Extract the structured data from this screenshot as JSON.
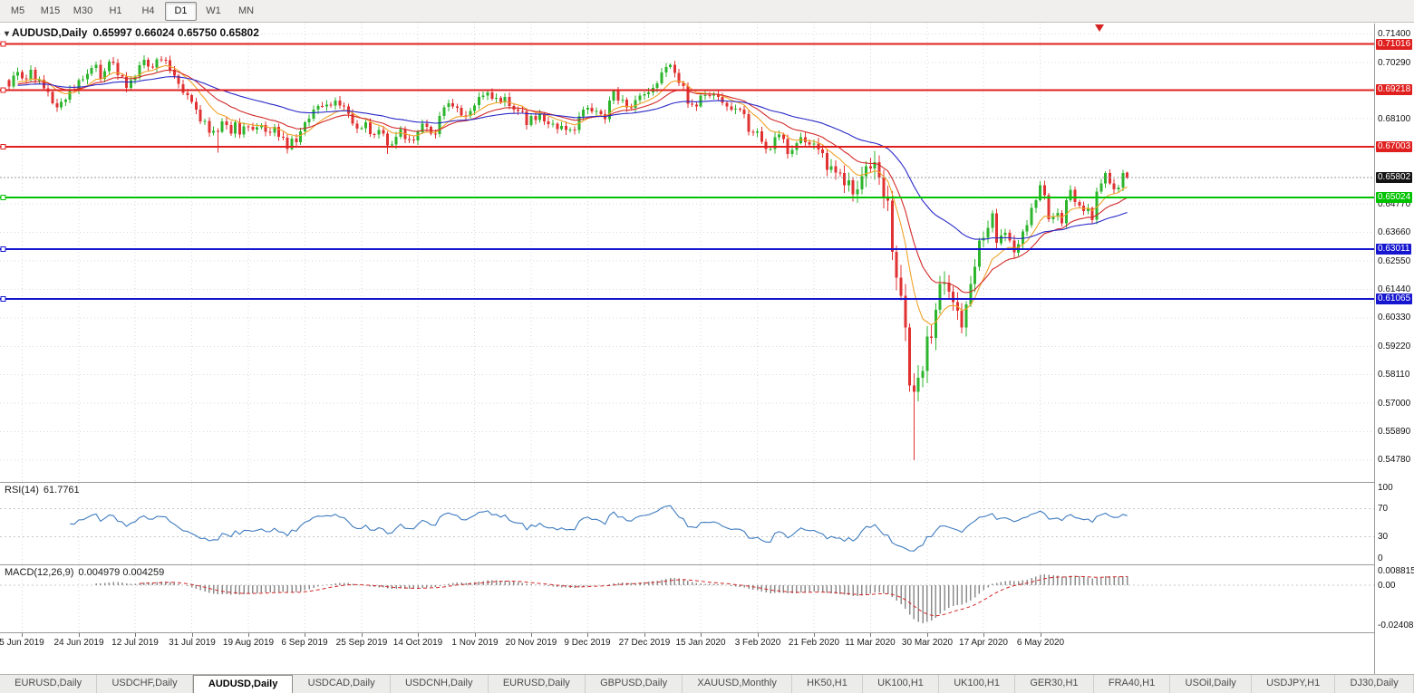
{
  "toolbar": {
    "timeframes": [
      "M5",
      "M15",
      "M30",
      "H1",
      "H4",
      "D1",
      "W1",
      "MN"
    ],
    "selected": "D1"
  },
  "icons": {
    "dropdown": "▾",
    "shift_marker": "▼"
  },
  "colors": {
    "up": "#2db52d",
    "down": "#e03232",
    "wick_up": "#1e8f1e",
    "wick_down": "#b52222",
    "grid": "#dadada",
    "level": "#c8c8c8",
    "hline_red": "#e01f1f",
    "hline_green": "#00c300",
    "hline_blue": "#1616cf",
    "bid_line": "#9a9a9a",
    "bid_badge_bg": "#141414"
  },
  "chart_data": {
    "type": "candlestick",
    "symbol": "AUDUSD",
    "timeframe": "Daily",
    "title": {
      "symbol": "AUDUSD,Daily",
      "values": "0.65997 0.66024 0.65750 0.65802"
    },
    "current": {
      "open": 0.65997,
      "high": 0.66024,
      "low": 0.6575,
      "close": 0.65802
    },
    "price_axis": {
      "max": 0.7181,
      "min": 0.5393,
      "step": 0.0111,
      "labels": [
        "0.71400",
        "0.70290",
        "0.68100",
        "0.64770",
        "0.63660",
        "0.62550",
        "0.61440",
        "0.60330",
        "0.59220",
        "0.58110",
        "0.57000",
        "0.55890",
        "0.54780"
      ]
    },
    "x_axis": {
      "labels": [
        "5 Jun 2019",
        "24 Jun 2019",
        "12 Jul 2019",
        "31 Jul 2019",
        "19 Aug 2019",
        "6 Sep 2019",
        "25 Sep 2019",
        "14 Oct 2019",
        "1 Nov 2019",
        "20 Nov 2019",
        "9 Dec 2019",
        "27 Dec 2019",
        "15 Jan 2020",
        "3 Feb 2020",
        "21 Feb 2020",
        "11 Mar 2020",
        "30 Mar 2020",
        "17 Apr 2020",
        "6 May 2020"
      ],
      "tick_start_index": 3,
      "tick_step": 13
    },
    "closes": [
      0.6936,
      0.6978,
      0.6992,
      0.6968,
      0.6964,
      0.7,
      0.696,
      0.6962,
      0.6928,
      0.6914,
      0.687,
      0.6854,
      0.6875,
      0.6884,
      0.6925,
      0.6922,
      0.696,
      0.6963,
      0.6985,
      0.7008,
      0.7021,
      0.6965,
      0.6995,
      0.7032,
      0.7028,
      0.698,
      0.6975,
      0.693,
      0.696,
      0.6975,
      0.7018,
      0.704,
      0.7013,
      0.701,
      0.7042,
      0.704,
      0.7038,
      0.7,
      0.6978,
      0.6945,
      0.691,
      0.6902,
      0.6875,
      0.6845,
      0.68,
      0.6802,
      0.6755,
      0.6762,
      0.6758,
      0.68,
      0.6785,
      0.6752,
      0.6795,
      0.6748,
      0.678,
      0.6778,
      0.6768,
      0.6776,
      0.6785,
      0.6758,
      0.6755,
      0.6778,
      0.674,
      0.6735,
      0.6692,
      0.6733,
      0.6718,
      0.676,
      0.6795,
      0.681,
      0.6845,
      0.686,
      0.6858,
      0.6865,
      0.6862,
      0.688,
      0.6862,
      0.6858,
      0.683,
      0.679,
      0.6772,
      0.6773,
      0.6795,
      0.675,
      0.6748,
      0.6765,
      0.6752,
      0.6705,
      0.671,
      0.674,
      0.677,
      0.673,
      0.6728,
      0.6725,
      0.6758,
      0.679,
      0.6778,
      0.6752,
      0.675,
      0.682,
      0.6855,
      0.687,
      0.6858,
      0.6852,
      0.6822,
      0.682,
      0.684,
      0.6862,
      0.6895,
      0.69,
      0.6912,
      0.6888,
      0.6892,
      0.6875,
      0.6895,
      0.686,
      0.6845,
      0.684,
      0.6838,
      0.6785,
      0.682,
      0.6805,
      0.683,
      0.68,
      0.6788,
      0.679,
      0.677,
      0.6782,
      0.6765,
      0.6768,
      0.6765,
      0.6818,
      0.6845,
      0.6853,
      0.6838,
      0.684,
      0.6828,
      0.6808,
      0.688,
      0.6918,
      0.688,
      0.6885,
      0.6855,
      0.6852,
      0.6882,
      0.69,
      0.6905,
      0.6912,
      0.693,
      0.6948,
      0.699,
      0.7012,
      0.7021,
      0.6988,
      0.695,
      0.6938,
      0.6868,
      0.6865,
      0.6858,
      0.69,
      0.6902,
      0.69,
      0.6905,
      0.6895,
      0.6872,
      0.6858,
      0.6845,
      0.6848,
      0.6845,
      0.6828,
      0.6758,
      0.6755,
      0.676,
      0.672,
      0.6692,
      0.6692,
      0.6738,
      0.6748,
      0.673,
      0.6672,
      0.6688,
      0.6715,
      0.6738,
      0.6718,
      0.671,
      0.6712,
      0.669,
      0.6675,
      0.661,
      0.6625,
      0.66,
      0.6598,
      0.655,
      0.657,
      0.6515,
      0.6535,
      0.6585,
      0.6625,
      0.6615,
      0.664,
      0.658,
      0.65,
      0.649,
      0.629,
      0.619,
      0.612,
      0.5995,
      0.577,
      0.5745,
      0.58,
      0.5825,
      0.596,
      0.5955,
      0.6065,
      0.6165,
      0.617,
      0.6135,
      0.6095,
      0.606,
      0.5995,
      0.6085,
      0.6165,
      0.6232,
      0.6335,
      0.6345,
      0.6385,
      0.644,
      0.6325,
      0.6355,
      0.6365,
      0.6335,
      0.6288,
      0.632,
      0.637,
      0.6395,
      0.6462,
      0.6492,
      0.655,
      0.6512,
      0.6418,
      0.6428,
      0.6442,
      0.6402,
      0.6492,
      0.6532,
      0.6485,
      0.647,
      0.645,
      0.6462,
      0.6415,
      0.6525,
      0.6558,
      0.6598,
      0.6558,
      0.6535,
      0.6542,
      0.6598,
      0.65802
    ],
    "high_overrides": {
      "34": 0.7048,
      "199": 0.6685
    },
    "low_overrides": {
      "48": 0.6677,
      "87": 0.6672,
      "208": 0.5478
    },
    "hlines": [
      {
        "value": 0.71016,
        "label": "0.71016",
        "color": "#e01f1f"
      },
      {
        "value": 0.69218,
        "label": "0.69218",
        "color": "#e01f1f"
      },
      {
        "value": 0.67003,
        "label": "0.67003",
        "color": "#e01f1f"
      },
      {
        "value": 0.65024,
        "label": "0.65024",
        "color": "#00c300"
      },
      {
        "value": 0.63011,
        "label": "0.63011",
        "color": "#1616cf"
      },
      {
        "value": 0.61065,
        "label": "0.61065",
        "color": "#1616cf"
      }
    ],
    "bid": {
      "value": 0.65802,
      "label": "0.65802"
    },
    "moving_averages": [
      {
        "name": "fast",
        "period": 10,
        "color": "#f0a228"
      },
      {
        "name": "mid",
        "period": 20,
        "color": "#d22828"
      },
      {
        "name": "slow",
        "period": 50,
        "color": "#2828c8"
      }
    ],
    "rsi": {
      "label": "RSI(14)",
      "value": "61.7761",
      "period": 14,
      "color": "#3e7bbf",
      "axis_labels": [
        "100",
        "70",
        "30",
        "0"
      ],
      "level_lines": [
        70,
        30
      ]
    },
    "macd": {
      "label": "MACD(12,26,9)",
      "values": "0.004979 0.004259",
      "fast": 12,
      "slow": 26,
      "signal_period": 9,
      "max": 0.008815,
      "min": -0.02408,
      "axis_labels": [
        "0.008815",
        "0.00",
        "-0.02408"
      ],
      "hist_color": "#8c8c8c",
      "signal_color": "#d22828"
    }
  },
  "tabbar": {
    "tabs": [
      "EURUSD,Daily",
      "USDCHF,Daily",
      "AUDUSD,Daily",
      "USDCAD,Daily",
      "USDCNH,Daily",
      "EURUSD,Daily",
      "GBPUSD,Daily",
      "XAUUSD,Monthly",
      "HK50,H1",
      "UK100,H1",
      "UK100,H1",
      "GER30,H1",
      "FRA40,H1",
      "USOil,Daily",
      "USDJPY,H1",
      "DJ30,Daily"
    ],
    "selected_index": 2
  }
}
